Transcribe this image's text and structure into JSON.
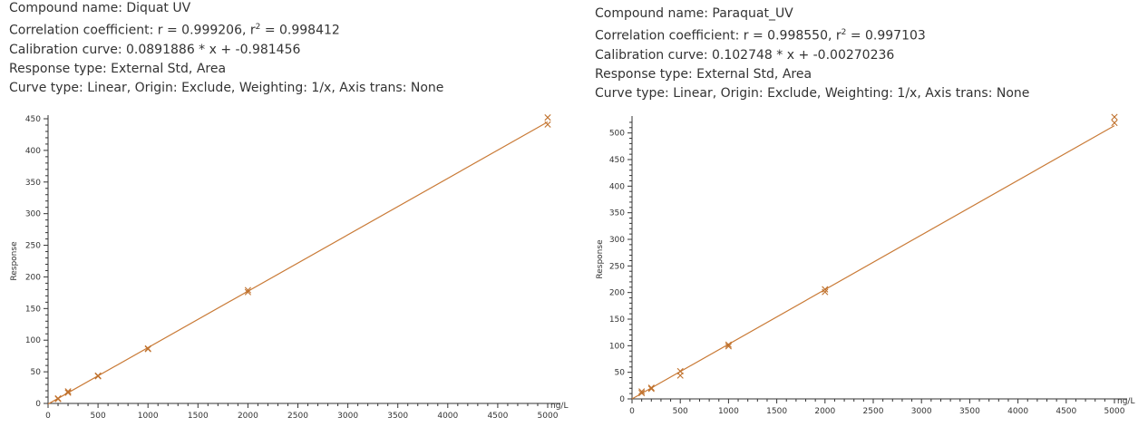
{
  "colors": {
    "curve": "#c97a36",
    "points": "#c0722e",
    "axis": "#333333"
  },
  "chart_data": [
    {
      "type": "scatter",
      "info": {
        "compound": "Compound name: Diquat UV",
        "corr_a": "Correlation coefficient: r = 0.999206, r",
        "corr_sup": "2",
        "corr_b": " = 0.998412",
        "calibration": "Calibration curve: 0.0891886 * x + -0.981456",
        "response_type": "Response type: External Std, Area",
        "curve_type": "Curve type: Linear, Origin: Exclude, Weighting: 1/x, Axis trans: None"
      },
      "ylabel": "Response",
      "xunit": "ng/L",
      "xlim": [
        0,
        5000
      ],
      "ylim": [
        0,
        450
      ],
      "xticks": [
        0,
        500,
        1000,
        1500,
        2000,
        2500,
        3000,
        3500,
        4000,
        4500,
        5000
      ],
      "yticks": [
        0,
        50,
        100,
        150,
        200,
        250,
        300,
        350,
        400,
        450
      ],
      "fit": {
        "slope": 0.0891886,
        "intercept": -0.981456,
        "x_range": [
          0,
          5000
        ]
      },
      "points": [
        {
          "x": 100,
          "y": 8
        },
        {
          "x": 100,
          "y": 7
        },
        {
          "x": 200,
          "y": 19
        },
        {
          "x": 200,
          "y": 17
        },
        {
          "x": 500,
          "y": 44
        },
        {
          "x": 500,
          "y": 43
        },
        {
          "x": 1000,
          "y": 87
        },
        {
          "x": 1000,
          "y": 86
        },
        {
          "x": 2000,
          "y": 179
        },
        {
          "x": 2000,
          "y": 176
        },
        {
          "x": 5000,
          "y": 452
        },
        {
          "x": 5000,
          "y": 441
        }
      ]
    },
    {
      "type": "scatter",
      "info": {
        "compound": "Compound name: Paraquat_UV",
        "corr_a": "Correlation coefficient: r = 0.998550, r",
        "corr_sup": "2",
        "corr_b": " = 0.997103",
        "calibration": "Calibration curve: 0.102748 * x + -0.00270236",
        "response_type": "Response type: External Std, Area",
        "curve_type": "Curve type: Linear, Origin: Exclude, Weighting: 1/x, Axis trans: None"
      },
      "ylabel": "Response",
      "xunit": "ng/L",
      "xlim": [
        0,
        5000
      ],
      "ylim": [
        0,
        525
      ],
      "xticks": [
        0,
        500,
        1000,
        1500,
        2000,
        2500,
        3000,
        3500,
        4000,
        4500,
        5000
      ],
      "yticks": [
        0,
        50,
        100,
        150,
        200,
        250,
        300,
        350,
        400,
        450,
        500
      ],
      "fit": {
        "slope": 0.102748,
        "intercept": -0.00270236,
        "x_range": [
          0,
          5000
        ]
      },
      "points": [
        {
          "x": 100,
          "y": 14
        },
        {
          "x": 100,
          "y": 11
        },
        {
          "x": 200,
          "y": 21
        },
        {
          "x": 200,
          "y": 19
        },
        {
          "x": 500,
          "y": 52
        },
        {
          "x": 500,
          "y": 44
        },
        {
          "x": 1000,
          "y": 102
        },
        {
          "x": 1000,
          "y": 99
        },
        {
          "x": 2000,
          "y": 206
        },
        {
          "x": 2000,
          "y": 201
        },
        {
          "x": 5000,
          "y": 530
        },
        {
          "x": 5000,
          "y": 519
        }
      ]
    }
  ]
}
